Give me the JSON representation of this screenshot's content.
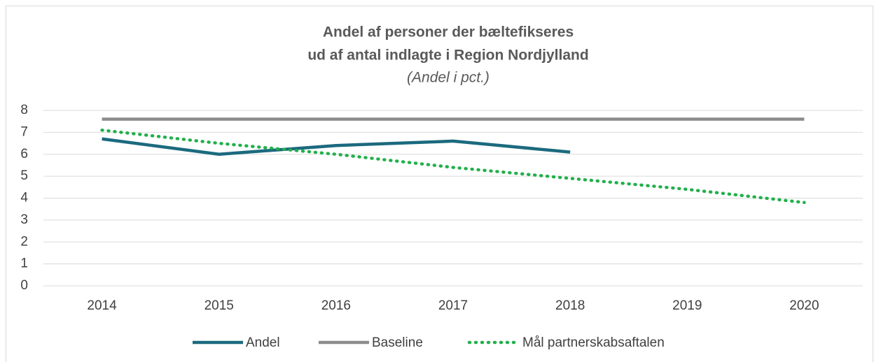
{
  "chart_data": {
    "type": "line",
    "title": [
      "Andel af personer der bæltefikseres",
      "ud af antal indlagte i Region Nordjylland"
    ],
    "subtitle": "(Andel i pct.)",
    "categories": [
      "2014",
      "2015",
      "2016",
      "2017",
      "2018",
      "2019",
      "2020"
    ],
    "series": [
      {
        "name": "Andel",
        "color": "#1b6a7e",
        "style": "solid",
        "values": [
          6.7,
          6.0,
          6.4,
          6.6,
          6.1,
          null,
          null
        ]
      },
      {
        "name": "Baseline",
        "color": "#8c8c8c",
        "style": "solid",
        "values": [
          7.6,
          7.6,
          7.6,
          7.6,
          7.6,
          7.6,
          7.6
        ]
      },
      {
        "name": "Mål partnerskabsaftalen",
        "color": "#21b04b",
        "style": "dotted",
        "values": [
          7.1,
          6.5,
          6.0,
          5.4,
          4.9,
          4.4,
          3.8
        ]
      }
    ],
    "ylim": [
      0,
      8
    ],
    "yticks": [
      0,
      1,
      2,
      3,
      4,
      5,
      6,
      7,
      8
    ],
    "grid": true,
    "legend": "bottom"
  }
}
